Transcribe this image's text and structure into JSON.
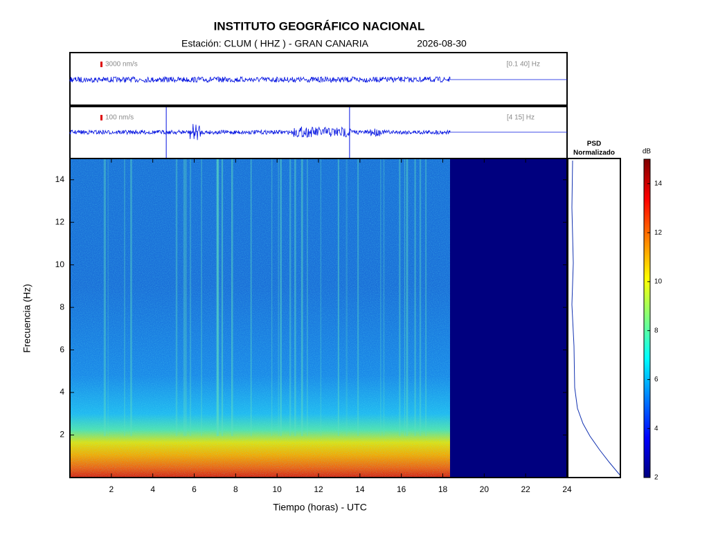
{
  "chart_data": {
    "type": "spectrogram",
    "title": "INSTITUTO GEOGRÁFICO NACIONAL",
    "subtitle": "Estación:  CLUM ( HHZ ) - GRAN CANARIA",
    "date": "2026-08-30",
    "traces": [
      {
        "scale_label": "3000 nm/s",
        "band_label": "[0.1 40] Hz"
      },
      {
        "scale_label": "100 nm/s",
        "band_label": "[4 15] Hz"
      }
    ],
    "xlabel": "Tiempo (horas) - UTC",
    "ylabel": "Frecuencia  (Hz)",
    "xlim": [
      0,
      24
    ],
    "xticks": [
      2,
      4,
      6,
      8,
      10,
      12,
      14,
      16,
      18,
      20,
      22,
      24
    ],
    "ylim": [
      0,
      15
    ],
    "yticks": [
      2,
      4,
      6,
      8,
      10,
      12,
      14
    ],
    "recording_end_hour": 18.35,
    "psd_title": [
      "PSD",
      "Normalizado"
    ],
    "colorbar": {
      "label": "dB",
      "lim": [
        2,
        15
      ],
      "ticks": [
        2,
        4,
        6,
        8,
        10,
        12,
        14
      ],
      "colormap": [
        "#00007f",
        "#0000ff",
        "#007fff",
        "#00ffff",
        "#7fff7f",
        "#ffff00",
        "#ff7f00",
        "#ff0000",
        "#7f0000"
      ]
    }
  }
}
